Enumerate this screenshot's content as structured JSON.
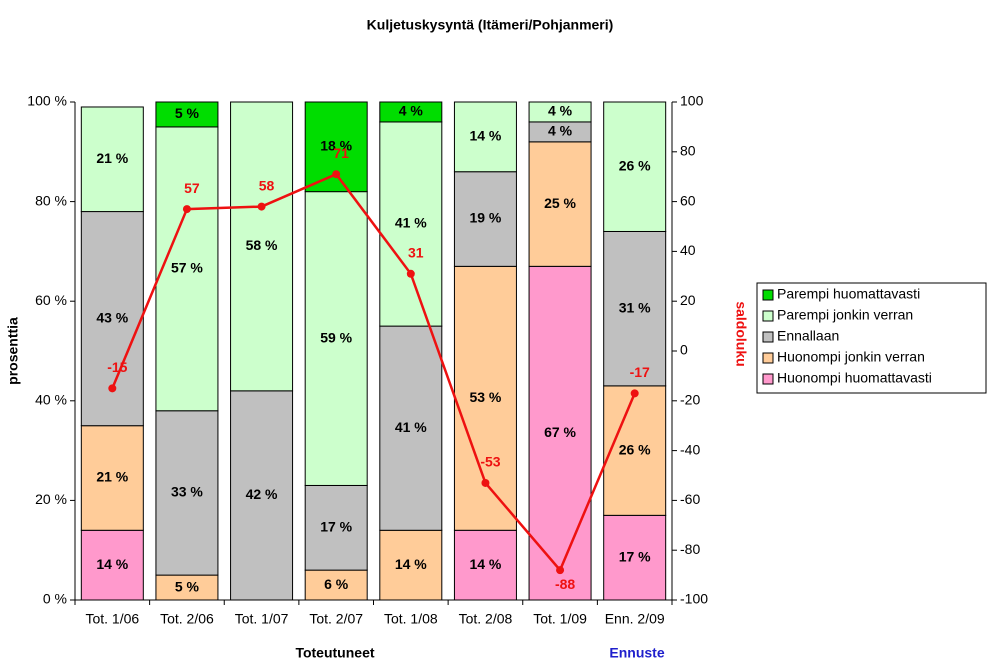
{
  "chart_data": {
    "type": "stacked_bar_line",
    "title": "Kuljetuskysyntä (Itämeri/Pohjanmeri)",
    "ylabel": "prosenttia",
    "y2label": "saldoluku",
    "xlabel": "Toteutuneet",
    "forecast_label": "Ennuste",
    "categories": [
      "Tot. 1/06",
      "Tot. 2/06",
      "Tot. 1/07",
      "Tot. 2/07",
      "Tot. 1/08",
      "Tot. 2/08",
      "Tot. 1/09",
      "Enn. 2/09"
    ],
    "series": [
      {
        "name": "Huonompi huomattavasti",
        "color": "#ff99cc",
        "values": [
          14,
          null,
          null,
          null,
          null,
          14,
          67,
          17
        ],
        "value_labels": [
          "14 %",
          null,
          null,
          null,
          null,
          "14 %",
          "67 %",
          "17 %"
        ]
      },
      {
        "name": "Huonompi jonkin verran",
        "color": "#ffcc99",
        "values": [
          21,
          5,
          null,
          6,
          14,
          53,
          25,
          26
        ],
        "value_labels": [
          "21 %",
          "5 %",
          null,
          "6 %",
          "14 %",
          "53 %",
          "25 %",
          "26 %"
        ]
      },
      {
        "name": "Ennallaan",
        "color": "#c0c0c0",
        "values": [
          43,
          33,
          42,
          17,
          41,
          19,
          4,
          31
        ],
        "value_labels": [
          "43 %",
          "33 %",
          "42 %",
          "17 %",
          "41 %",
          "19 %",
          "4 %",
          "31 %"
        ]
      },
      {
        "name": "Parempi jonkin verran",
        "color": "#ccffcc",
        "values": [
          21,
          57,
          58,
          59,
          41,
          14,
          4,
          26
        ],
        "value_labels": [
          "21 %",
          "57 %",
          "58 %",
          "59 %",
          "41 %",
          "14 %",
          "4 %",
          "26 %"
        ]
      },
      {
        "name": "Parempi huomattavasti",
        "color": "#00dd00",
        "values": [
          null,
          5,
          null,
          18,
          4,
          null,
          null,
          null
        ],
        "value_labels": [
          null,
          "5 %",
          null,
          "18 %",
          "4 %",
          null,
          null,
          null
        ]
      }
    ],
    "line": {
      "name": "saldoluku",
      "color": "#ee1111",
      "axis": "y2",
      "values": [
        -15,
        57,
        58,
        71,
        31,
        -53,
        -88,
        -17
      ]
    },
    "ylim": [
      0,
      100
    ],
    "yticks": [
      {
        "value": 0,
        "label": "0 %"
      },
      {
        "value": 20,
        "label": "20 %"
      },
      {
        "value": 40,
        "label": "40 %"
      },
      {
        "value": 60,
        "label": "60 %"
      },
      {
        "value": 80,
        "label": "80 %"
      },
      {
        "value": 100,
        "label": "100 %"
      }
    ],
    "y2lim": [
      -100,
      100
    ],
    "y2ticks": [
      -100,
      -80,
      -60,
      -40,
      -20,
      0,
      20,
      40,
      60,
      80,
      100
    ]
  }
}
